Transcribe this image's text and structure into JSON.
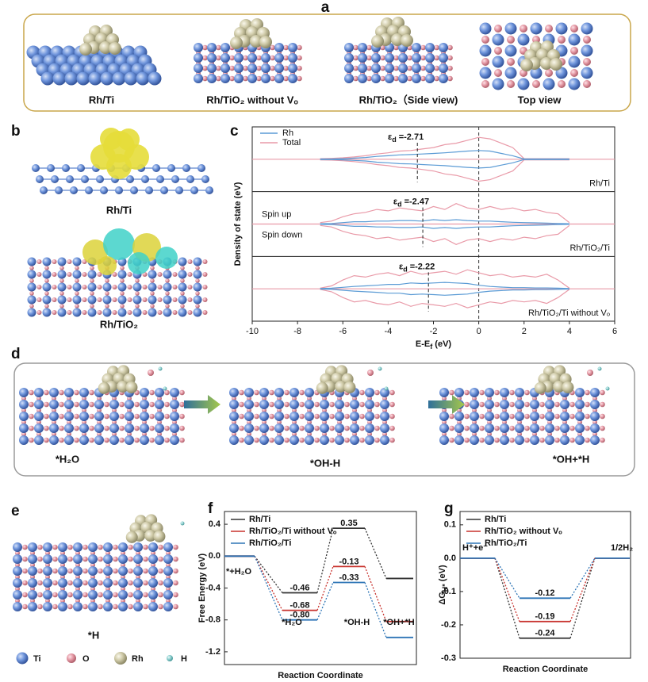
{
  "figure": {
    "a": {
      "letter": "a",
      "captions": [
        "Rh/Ti",
        "Rh/TiO₂ without Vₒ",
        "Rh/TiO₂（Side view)",
        "Top view"
      ]
    },
    "b": {
      "letter": "b",
      "captions": [
        "Rh/Ti",
        "Rh/TiO₂"
      ]
    },
    "d": {
      "letter": "d",
      "captions": [
        "*H₂O",
        "*OH-H",
        "*OH+*H"
      ]
    },
    "e": {
      "letter": "e",
      "caption": "*H"
    },
    "atom_legend": [
      "Ti",
      "O",
      "Rh",
      "H"
    ]
  },
  "chart_data": [
    {
      "type": "dos",
      "panel_letter": "c",
      "x_label": [
        "E-E",
        "f",
        " (eV)"
      ],
      "y_label": "Density of state (eV)",
      "xlim": [
        -10,
        6
      ],
      "xticks": [
        -10,
        -8,
        -6,
        -4,
        -2,
        0,
        2,
        4,
        6
      ],
      "fermi": 0,
      "ed_symbol": [
        "ε",
        "d"
      ],
      "series": [
        {
          "name": "Rh",
          "color": "#5b9bd5"
        },
        {
          "name": "Total",
          "color": "#e99aa8"
        }
      ],
      "x": [
        -7,
        -6.5,
        -6,
        -5.5,
        -5,
        -4.5,
        -4,
        -3.5,
        -3,
        -2.5,
        -2,
        -1.5,
        -1,
        -0.5,
        0,
        0.5,
        1,
        1.5,
        2,
        2.5,
        3,
        3.5,
        4
      ],
      "panels": [
        {
          "label": "Rh/Ti",
          "ed": -2.71,
          "ed_label": "=-2.71",
          "ylim": [
            -1,
            1
          ],
          "values": [
            [
              0.01,
              0.01,
              0.02,
              0.04,
              0.06,
              0.1,
              0.12,
              0.15,
              0.16,
              0.18,
              0.2,
              0.22,
              0.25,
              0.28,
              0.3,
              0.28,
              0.2,
              0.12,
              0.01,
              0.01,
              0.01,
              0.01,
              0.01
            ],
            [
              0.02,
              0.03,
              0.05,
              0.08,
              0.12,
              0.18,
              0.22,
              0.28,
              0.3,
              0.35,
              0.4,
              0.5,
              0.55,
              0.65,
              0.75,
              0.7,
              0.55,
              0.4,
              0.02,
              0.02,
              0.02,
              0.02,
              0.02
            ]
          ]
        },
        {
          "label": "Rh/TiO₂/Ti",
          "ed": -2.47,
          "ed_label": "=-2.47",
          "ylim": [
            -1,
            1
          ],
          "spin_labels": [
            "Spin up",
            "Spin down"
          ],
          "values": [
            [
              0.01,
              0.02,
              0.05,
              0.08,
              0.08,
              0.1,
              0.1,
              0.12,
              0.12,
              0.1,
              0.15,
              0.12,
              0.15,
              0.12,
              0.1,
              0.1,
              0.08,
              0.06,
              0.05,
              0.04,
              0.03,
              0.02,
              0.01
            ],
            [
              0.05,
              0.1,
              0.25,
              0.35,
              0.4,
              0.5,
              0.45,
              0.55,
              0.5,
              0.45,
              0.6,
              0.5,
              0.7,
              0.55,
              0.5,
              0.6,
              0.5,
              0.55,
              0.45,
              0.5,
              0.4,
              0.35,
              0.05
            ]
          ]
        },
        {
          "label": "Rh/TiO₂/Ti without Vₒ",
          "ed": -2.22,
          "ed_label": "=-2.22",
          "ylim": [
            -1,
            1
          ],
          "values": [
            [
              0.01,
              0.02,
              0.05,
              0.08,
              0.1,
              0.12,
              0.15,
              0.15,
              0.2,
              0.18,
              0.2,
              0.22,
              0.2,
              0.18,
              0.12,
              0.08,
              0.06,
              0.04,
              0.04,
              0.03,
              0.03,
              0.02,
              0.01
            ],
            [
              0.02,
              0.1,
              0.3,
              0.45,
              0.4,
              0.5,
              0.55,
              0.45,
              0.6,
              0.5,
              0.55,
              0.6,
              0.5,
              0.65,
              0.55,
              0.45,
              0.5,
              0.4,
              0.45,
              0.4,
              0.5,
              0.3,
              0.02
            ]
          ]
        }
      ]
    },
    {
      "type": "levels",
      "panel_letter": "f",
      "y_label": "Free Energy (eV)",
      "x_label": "Reaction Coordinate",
      "categories": [
        "*+H₂O",
        "*H₂O",
        "*OH-H",
        "*OH+*H"
      ],
      "ylim": [
        -1.36,
        0.56
      ],
      "yticks": [
        -1.2,
        -0.8,
        -0.4,
        {
          "value": 0,
          "label": "0.0"
        },
        0.4
      ],
      "series": [
        {
          "name": "Rh/Ti",
          "color": "#333333",
          "values": [
            0,
            -0.46,
            0.35,
            -0.28
          ],
          "value_labels": [
            null,
            "-0.46",
            "0.35",
            null
          ]
        },
        {
          "name": "Rh/TiO₂/Ti without Vₒ",
          "color": "#c8322d",
          "values": [
            0,
            -0.68,
            -0.13,
            -0.82
          ],
          "value_labels": [
            null,
            "-0.68",
            "-0.13",
            null
          ]
        },
        {
          "name": "Rh/TiO₂/Ti",
          "color": "#2e75b6",
          "values": [
            0,
            -0.8,
            -0.33,
            -1.02
          ],
          "value_labels": [
            null,
            "-0.80",
            "-0.33",
            null
          ]
        }
      ]
    },
    {
      "type": "levels",
      "panel_letter": "g",
      "y_label": [
        "ΔG",
        "H*",
        " (eV)"
      ],
      "x_label": "Reaction Coordinate",
      "categories": [
        "H⁺+e⁻",
        null,
        "1/2H₂"
      ],
      "ylim": [
        -0.3,
        0.14
      ],
      "yticks": [
        -0.3,
        -0.2,
        -0.1,
        {
          "value": 0,
          "label": "0.0"
        },
        0.1
      ],
      "series": [
        {
          "name": "Rh/Ti",
          "color": "#333333",
          "values": [
            0,
            -0.24,
            0
          ],
          "value_labels": [
            null,
            "-0.24",
            null
          ]
        },
        {
          "name": "Rh/TiO₂ without Vₒ",
          "color": "#c8322d",
          "values": [
            0,
            -0.19,
            0
          ],
          "value_labels": [
            null,
            "-0.19",
            null
          ]
        },
        {
          "name": "Rh/TiO₂/Ti",
          "color": "#2e75b6",
          "values": [
            0,
            -0.12,
            0
          ],
          "value_labels": [
            null,
            "-0.12",
            null
          ]
        }
      ]
    }
  ]
}
